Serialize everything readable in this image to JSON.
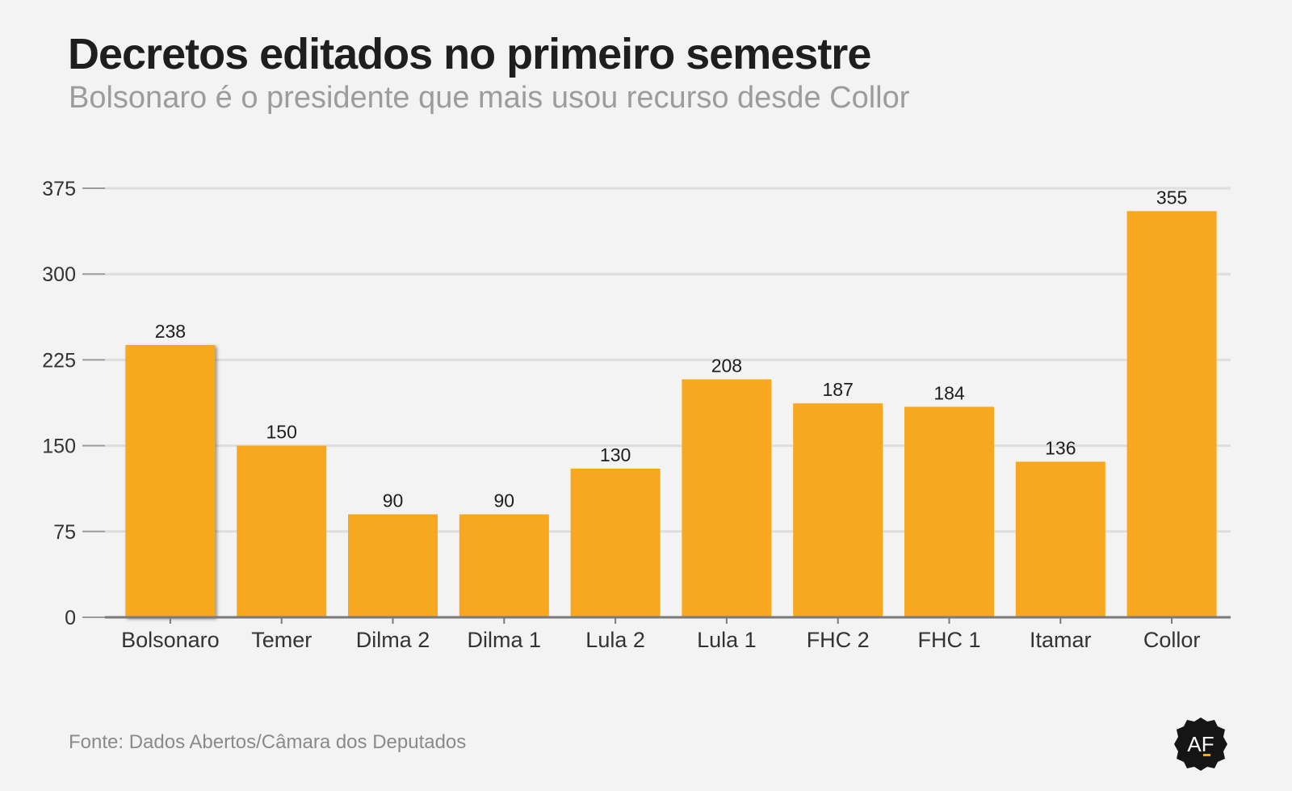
{
  "title": "Decretos editados no primeiro semestre",
  "subtitle": "Bolsonaro é o presidente que mais usou recurso desde Collor",
  "source": "Fonte: Dados Abertos/Câmara dos Deputados",
  "logo_text": "AF",
  "colors": {
    "bar": "#f8a81e",
    "grid": "#dedede",
    "axis": "#7a7a7a",
    "text": "#1e1e1e",
    "tick": "#333333"
  },
  "chart_data": {
    "type": "bar",
    "categories": [
      "Bolsonaro",
      "Temer",
      "Dilma 2",
      "Dilma 1",
      "Lula 2",
      "Lula 1",
      "FHC 2",
      "FHC 1",
      "Itamar",
      "Collor"
    ],
    "values": [
      238,
      150,
      90,
      90,
      130,
      208,
      187,
      184,
      136,
      355
    ],
    "yticks": [
      0,
      75,
      150,
      225,
      300,
      375
    ],
    "ylim": [
      0,
      375
    ],
    "grid": true,
    "data_labels": true,
    "highlighted": "Bolsonaro"
  }
}
